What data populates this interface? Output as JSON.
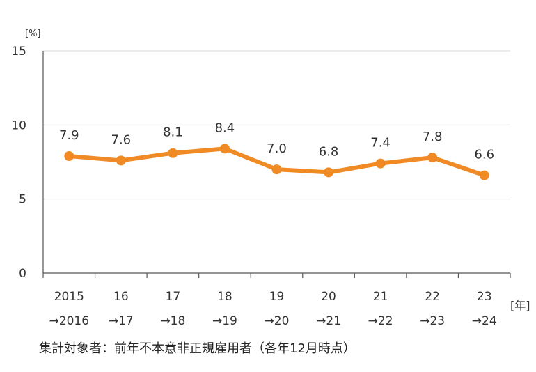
{
  "chart_data": {
    "type": "line",
    "title": "",
    "xlabel": "",
    "ylabel": "",
    "y_unit_label": "[%]",
    "x_unit_label": "[年]",
    "ylim": [
      0,
      15
    ],
    "yticks": [
      0,
      5,
      10,
      15
    ],
    "grid": true,
    "legend": "none",
    "series_color": "#F08A24",
    "grid_color": "#D9D9D9",
    "axis_color": "#555555",
    "categories": [
      {
        "top": "2015",
        "bottom": "→2016"
      },
      {
        "top": "16",
        "bottom": "→17"
      },
      {
        "top": "17",
        "bottom": "→18"
      },
      {
        "top": "18",
        "bottom": "→19"
      },
      {
        "top": "19",
        "bottom": "→20"
      },
      {
        "top": "20",
        "bottom": "→21"
      },
      {
        "top": "21",
        "bottom": "→22"
      },
      {
        "top": "22",
        "bottom": "→23"
      },
      {
        "top": "23",
        "bottom": "→24"
      }
    ],
    "series": [
      {
        "values": [
          7.9,
          7.6,
          8.1,
          8.4,
          7.0,
          6.8,
          7.4,
          7.8,
          6.6
        ],
        "labels": [
          "7.9",
          "7.6",
          "8.1",
          "8.4",
          "7.0",
          "6.8",
          "7.4",
          "7.8",
          "6.6"
        ]
      }
    ]
  },
  "footnote": "集計対象者：前年不本意非正規雇用者（各年12月時点）"
}
